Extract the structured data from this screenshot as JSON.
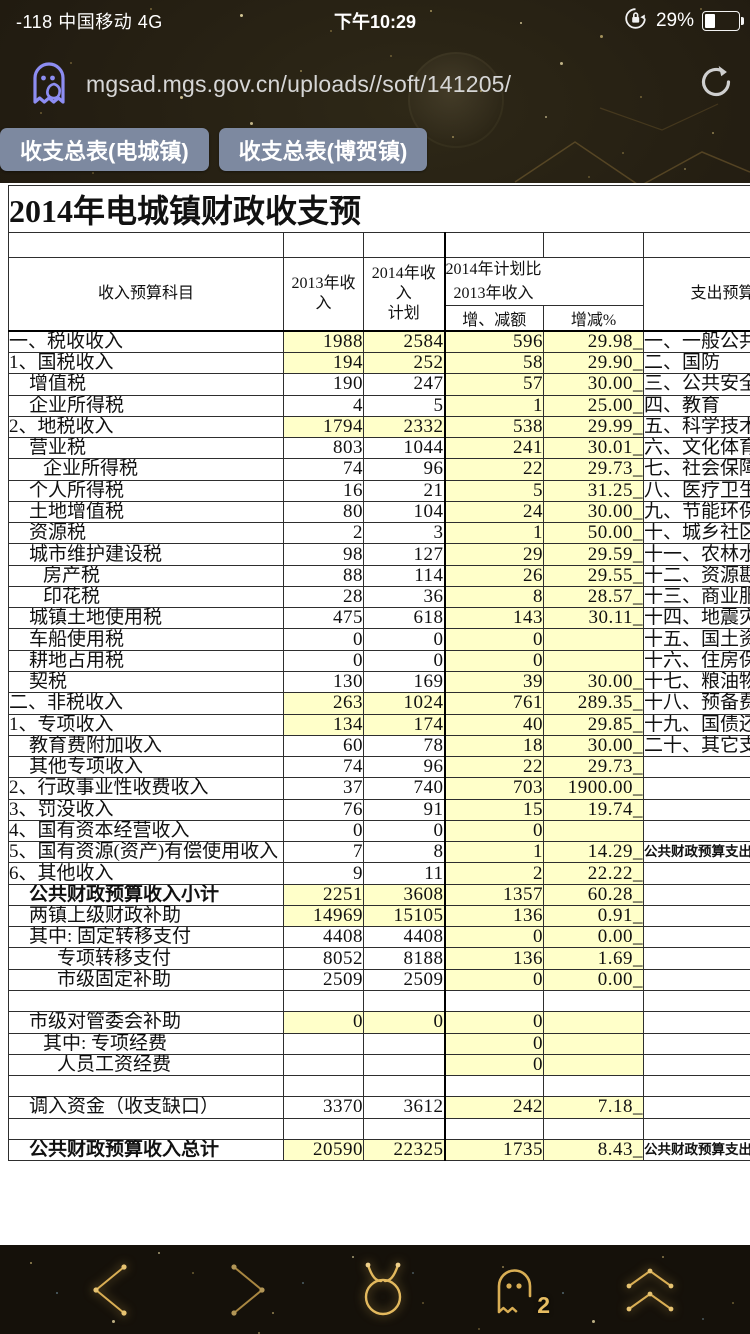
{
  "colors": {
    "accent_gold": "#d9ae54",
    "tab_bg": "#7d89a0",
    "cell_yellow": "#ffffc9",
    "ghost_purple": "#8d8df2",
    "paper": "#ffffff"
  },
  "status_bar": {
    "carrier": "-118 中国移动  4G",
    "time": "下午10:29",
    "battery_pct": "29%",
    "battery_icon": "battery-icon",
    "lock_icon": "orientation-lock-icon"
  },
  "url_bar": {
    "url": "mgsad.mgs.gov.cn/uploads//soft/141205/",
    "site_icon": "incognito-ghost-icon",
    "reload_icon": "reload-icon"
  },
  "sheet_tabs": [
    {
      "label": "收支总表(电城镇)",
      "active": true
    },
    {
      "label": "收支总表(博贺镇)",
      "active": false
    }
  ],
  "table": {
    "title": "2014年电城镇财政收支预",
    "header": {
      "subject": "收入预算科目",
      "y2013": "2013年收入",
      "plan_l1": "2014年收入",
      "plan_l2": "计划",
      "cmp_l1": "2014年计划比",
      "cmp_l2": "2013年收入",
      "diff": "增、减额",
      "pct": "增减%",
      "expenditure": "支出预算科目"
    },
    "rows": [
      {
        "l": "一、税收收入",
        "i": 0,
        "v1": "1988",
        "v2": "2584",
        "d": "596",
        "p": "29.98_",
        "hl": 1,
        "e": "一、一般公共服务"
      },
      {
        "l": "1、国税收入",
        "i": 0,
        "v1": "194",
        "v2": "252",
        "d": "58",
        "p": "29.90_",
        "hl": 1,
        "e": "二、国防"
      },
      {
        "l": "增值税",
        "i": 1,
        "v1": "190",
        "v2": "247",
        "d": "57",
        "p": "30.00_",
        "e": "三、公共安全"
      },
      {
        "l": "企业所得税",
        "i": 1,
        "v1": "4",
        "v2": "5",
        "d": "1",
        "p": "25.00_",
        "e": "四、教育"
      },
      {
        "l": "2、地税收入",
        "i": 0,
        "v1": "1794",
        "v2": "2332",
        "d": "538",
        "p": "29.99_",
        "hl": 1,
        "e": "五、科学技术"
      },
      {
        "l": "营业税",
        "i": 1,
        "v1": "803",
        "v2": "1044",
        "d": "241",
        "p": "30.01_",
        "e": "六、文化体育与传媒"
      },
      {
        "l": "企业所得税",
        "i": 2,
        "v1": "74",
        "v2": "96",
        "d": "22",
        "p": "29.73_",
        "e": "七、社会保障和就业"
      },
      {
        "l": "个人所得税",
        "i": 1,
        "v1": "16",
        "v2": "21",
        "d": "5",
        "p": "31.25_",
        "e": "八、医疗卫生"
      },
      {
        "l": "土地增值税",
        "i": 1,
        "v1": "80",
        "v2": "104",
        "d": "24",
        "p": "30.00_",
        "e": "九、节能环保"
      },
      {
        "l": "资源税",
        "i": 1,
        "v1": "2",
        "v2": "3",
        "d": "1",
        "p": "50.00_",
        "e": "十、城乡社区事务"
      },
      {
        "l": "城市维护建设税",
        "i": 1,
        "v1": "98",
        "v2": "127",
        "d": "29",
        "p": "29.59_",
        "e": "十一、农林水事务"
      },
      {
        "l": "房产税",
        "i": 2,
        "v1": "88",
        "v2": "114",
        "d": "26",
        "p": "29.55_",
        "e": "十二、资源勘探电力"
      },
      {
        "l": "印花税",
        "i": 2,
        "v1": "28",
        "v2": "36",
        "d": "8",
        "p": "28.57_",
        "e": "十三、商业服务业等"
      },
      {
        "l": "城镇土地使用税",
        "i": 1,
        "v1": "475",
        "v2": "618",
        "d": "143",
        "p": "30.11_",
        "e": "十四、地震灾后恢复"
      },
      {
        "l": "车船使用税",
        "i": 1,
        "v1": "0",
        "v2": "0",
        "d": "0",
        "p": "",
        "e": "十五、国土资源气象"
      },
      {
        "l": "耕地占用税",
        "i": 1,
        "v1": "0",
        "v2": "0",
        "d": "0",
        "p": "",
        "e": "十六、住房保障支出"
      },
      {
        "l": "契税",
        "i": 1,
        "v1": "130",
        "v2": "169",
        "d": "39",
        "p": "30.00_",
        "e": "十七、粮油物资储备"
      },
      {
        "l": "二、非税收入",
        "i": 0,
        "v1": "263",
        "v2": "1024",
        "d": "761",
        "p": "289.35_",
        "hl": 1,
        "e": "十八、预备费"
      },
      {
        "l": "1、专项收入",
        "i": 0,
        "v1": "134",
        "v2": "174",
        "d": "40",
        "p": "29.85_",
        "hl": 1,
        "e": "十九、国债还本付息"
      },
      {
        "l": "教育费附加收入",
        "i": 1,
        "v1": "60",
        "v2": "78",
        "d": "18",
        "p": "30.00_",
        "e": "二十、其它支出"
      },
      {
        "l": "其他专项收入",
        "i": 1,
        "v1": "74",
        "v2": "96",
        "d": "22",
        "p": "29.73_",
        "e": ""
      },
      {
        "l": "2、行政事业性收费收入",
        "i": 0,
        "v1": "37",
        "v2": "740",
        "d": "703",
        "p": "1900.00_",
        "e": ""
      },
      {
        "l": "3、罚没收入",
        "i": 0,
        "v1": "76",
        "v2": "91",
        "d": "15",
        "p": "19.74_",
        "e": ""
      },
      {
        "l": "4、国有资本经营收入",
        "i": 0,
        "v1": "0",
        "v2": "0",
        "d": "0",
        "p": "",
        "e": ""
      },
      {
        "l": "5、国有资源(资产)有偿使用收入",
        "i": 0,
        "v1": "7",
        "v2": "8",
        "d": "1",
        "p": "14.29_",
        "e": "公共财政预算支出",
        "eb": 1
      },
      {
        "l": "6、其他收入",
        "i": 0,
        "v1": "9",
        "v2": "11",
        "d": "2",
        "p": "22.22_",
        "e": ""
      },
      {
        "l": "公共财政预算收入小计",
        "i": 1,
        "b": 1,
        "v1": "2251",
        "v2": "3608",
        "d": "1357",
        "p": "60.28_",
        "hl": 1,
        "e": ""
      },
      {
        "l": "两镇上级财政补助",
        "i": 1,
        "v1": "14969",
        "v2": "15105",
        "d": "136",
        "p": "0.91_",
        "hl": 1,
        "e": ""
      },
      {
        "l": "其中: 固定转移支付",
        "i": 1,
        "v1": "4408",
        "v2": "4408",
        "d": "0",
        "p": "0.00_",
        "e": ""
      },
      {
        "l": "专项转移支付",
        "i": 3,
        "v1": "8052",
        "v2": "8188",
        "d": "136",
        "p": "1.69_",
        "e": ""
      },
      {
        "l": "市级固定补助",
        "i": 3,
        "v1": "2509",
        "v2": "2509",
        "d": "0",
        "p": "0.00_",
        "e": ""
      },
      {
        "l": "",
        "i": 0,
        "v1": "",
        "v2": "",
        "d": "",
        "p": "",
        "cw": 1,
        "e": ""
      },
      {
        "l": "市级对管委会补助",
        "i": 1,
        "v1": "0",
        "v2": "0",
        "d": "0",
        "p": "",
        "hl": 1,
        "e": ""
      },
      {
        "l": "其中: 专项经费",
        "i": 2,
        "v1": "",
        "v2": "",
        "d": "0",
        "p": "",
        "e": ""
      },
      {
        "l": "人员工资经费",
        "i": 3,
        "v1": "",
        "v2": "",
        "d": "0",
        "p": "",
        "e": ""
      },
      {
        "l": "",
        "i": 0,
        "v1": "",
        "v2": "",
        "d": "",
        "p": "",
        "cw": 1,
        "e": ""
      },
      {
        "l": "调入资金（收支缺口）",
        "i": 1,
        "v1": "3370",
        "v2": "3612",
        "d": "242",
        "p": "7.18_",
        "e": ""
      },
      {
        "l": "",
        "i": 0,
        "v1": "",
        "v2": "",
        "d": "",
        "p": "",
        "cw": 1,
        "e": ""
      },
      {
        "l": "公共财政预算收入总计",
        "i": 1,
        "b": 1,
        "v1": "20590",
        "v2": "22325",
        "d": "1735",
        "p": "8.43_",
        "hl": 1,
        "e": "公共财政预算支出",
        "eb": 1
      }
    ]
  },
  "toolbar": {
    "back_icon": "back-icon",
    "forward_icon": "forward-icon",
    "browser_logo_icon": "browser-logo-icon",
    "windows_icon": "windows-ghost-icon",
    "window_count": "2",
    "home_icon": "home-chevrons-icon"
  }
}
